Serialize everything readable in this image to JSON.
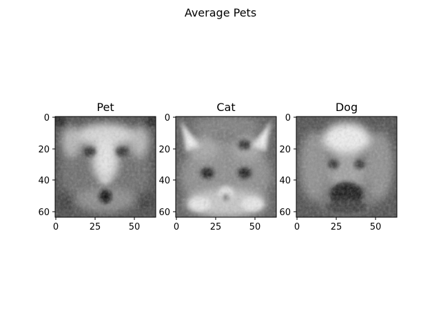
{
  "figure": {
    "title": "Average Pets"
  },
  "chart_data": [
    {
      "type": "heatmap",
      "title": "Pet",
      "image_size": [
        64,
        64
      ],
      "colormap": "gray",
      "xlim": [
        -0.5,
        63.5
      ],
      "ylim": [
        63.5,
        -0.5
      ],
      "xticks": [
        0,
        25,
        50
      ],
      "yticks": [
        0,
        20,
        40,
        60
      ],
      "xtick_labels": [
        "0",
        "25",
        "50"
      ],
      "ytick_labels": [
        "0",
        "20",
        "40",
        "60"
      ],
      "grid": false
    },
    {
      "type": "heatmap",
      "title": "Cat",
      "image_size": [
        64,
        64
      ],
      "colormap": "gray",
      "xlim": [
        -0.5,
        63.5
      ],
      "ylim": [
        63.5,
        -0.5
      ],
      "xticks": [
        0,
        25,
        50
      ],
      "yticks": [
        0,
        20,
        40,
        60
      ],
      "xtick_labels": [
        "0",
        "25",
        "50"
      ],
      "ytick_labels": [
        "0",
        "20",
        "40",
        "60"
      ],
      "grid": false
    },
    {
      "type": "heatmap",
      "title": "Dog",
      "image_size": [
        64,
        64
      ],
      "colormap": "gray",
      "xlim": [
        -0.5,
        63.5
      ],
      "ylim": [
        63.5,
        -0.5
      ],
      "xticks": [
        0,
        25,
        50
      ],
      "yticks": [
        0,
        20,
        40,
        60
      ],
      "xtick_labels": [
        "0",
        "25",
        "50"
      ],
      "ytick_labels": [
        "0",
        "20",
        "40",
        "60"
      ],
      "grid": false
    }
  ]
}
